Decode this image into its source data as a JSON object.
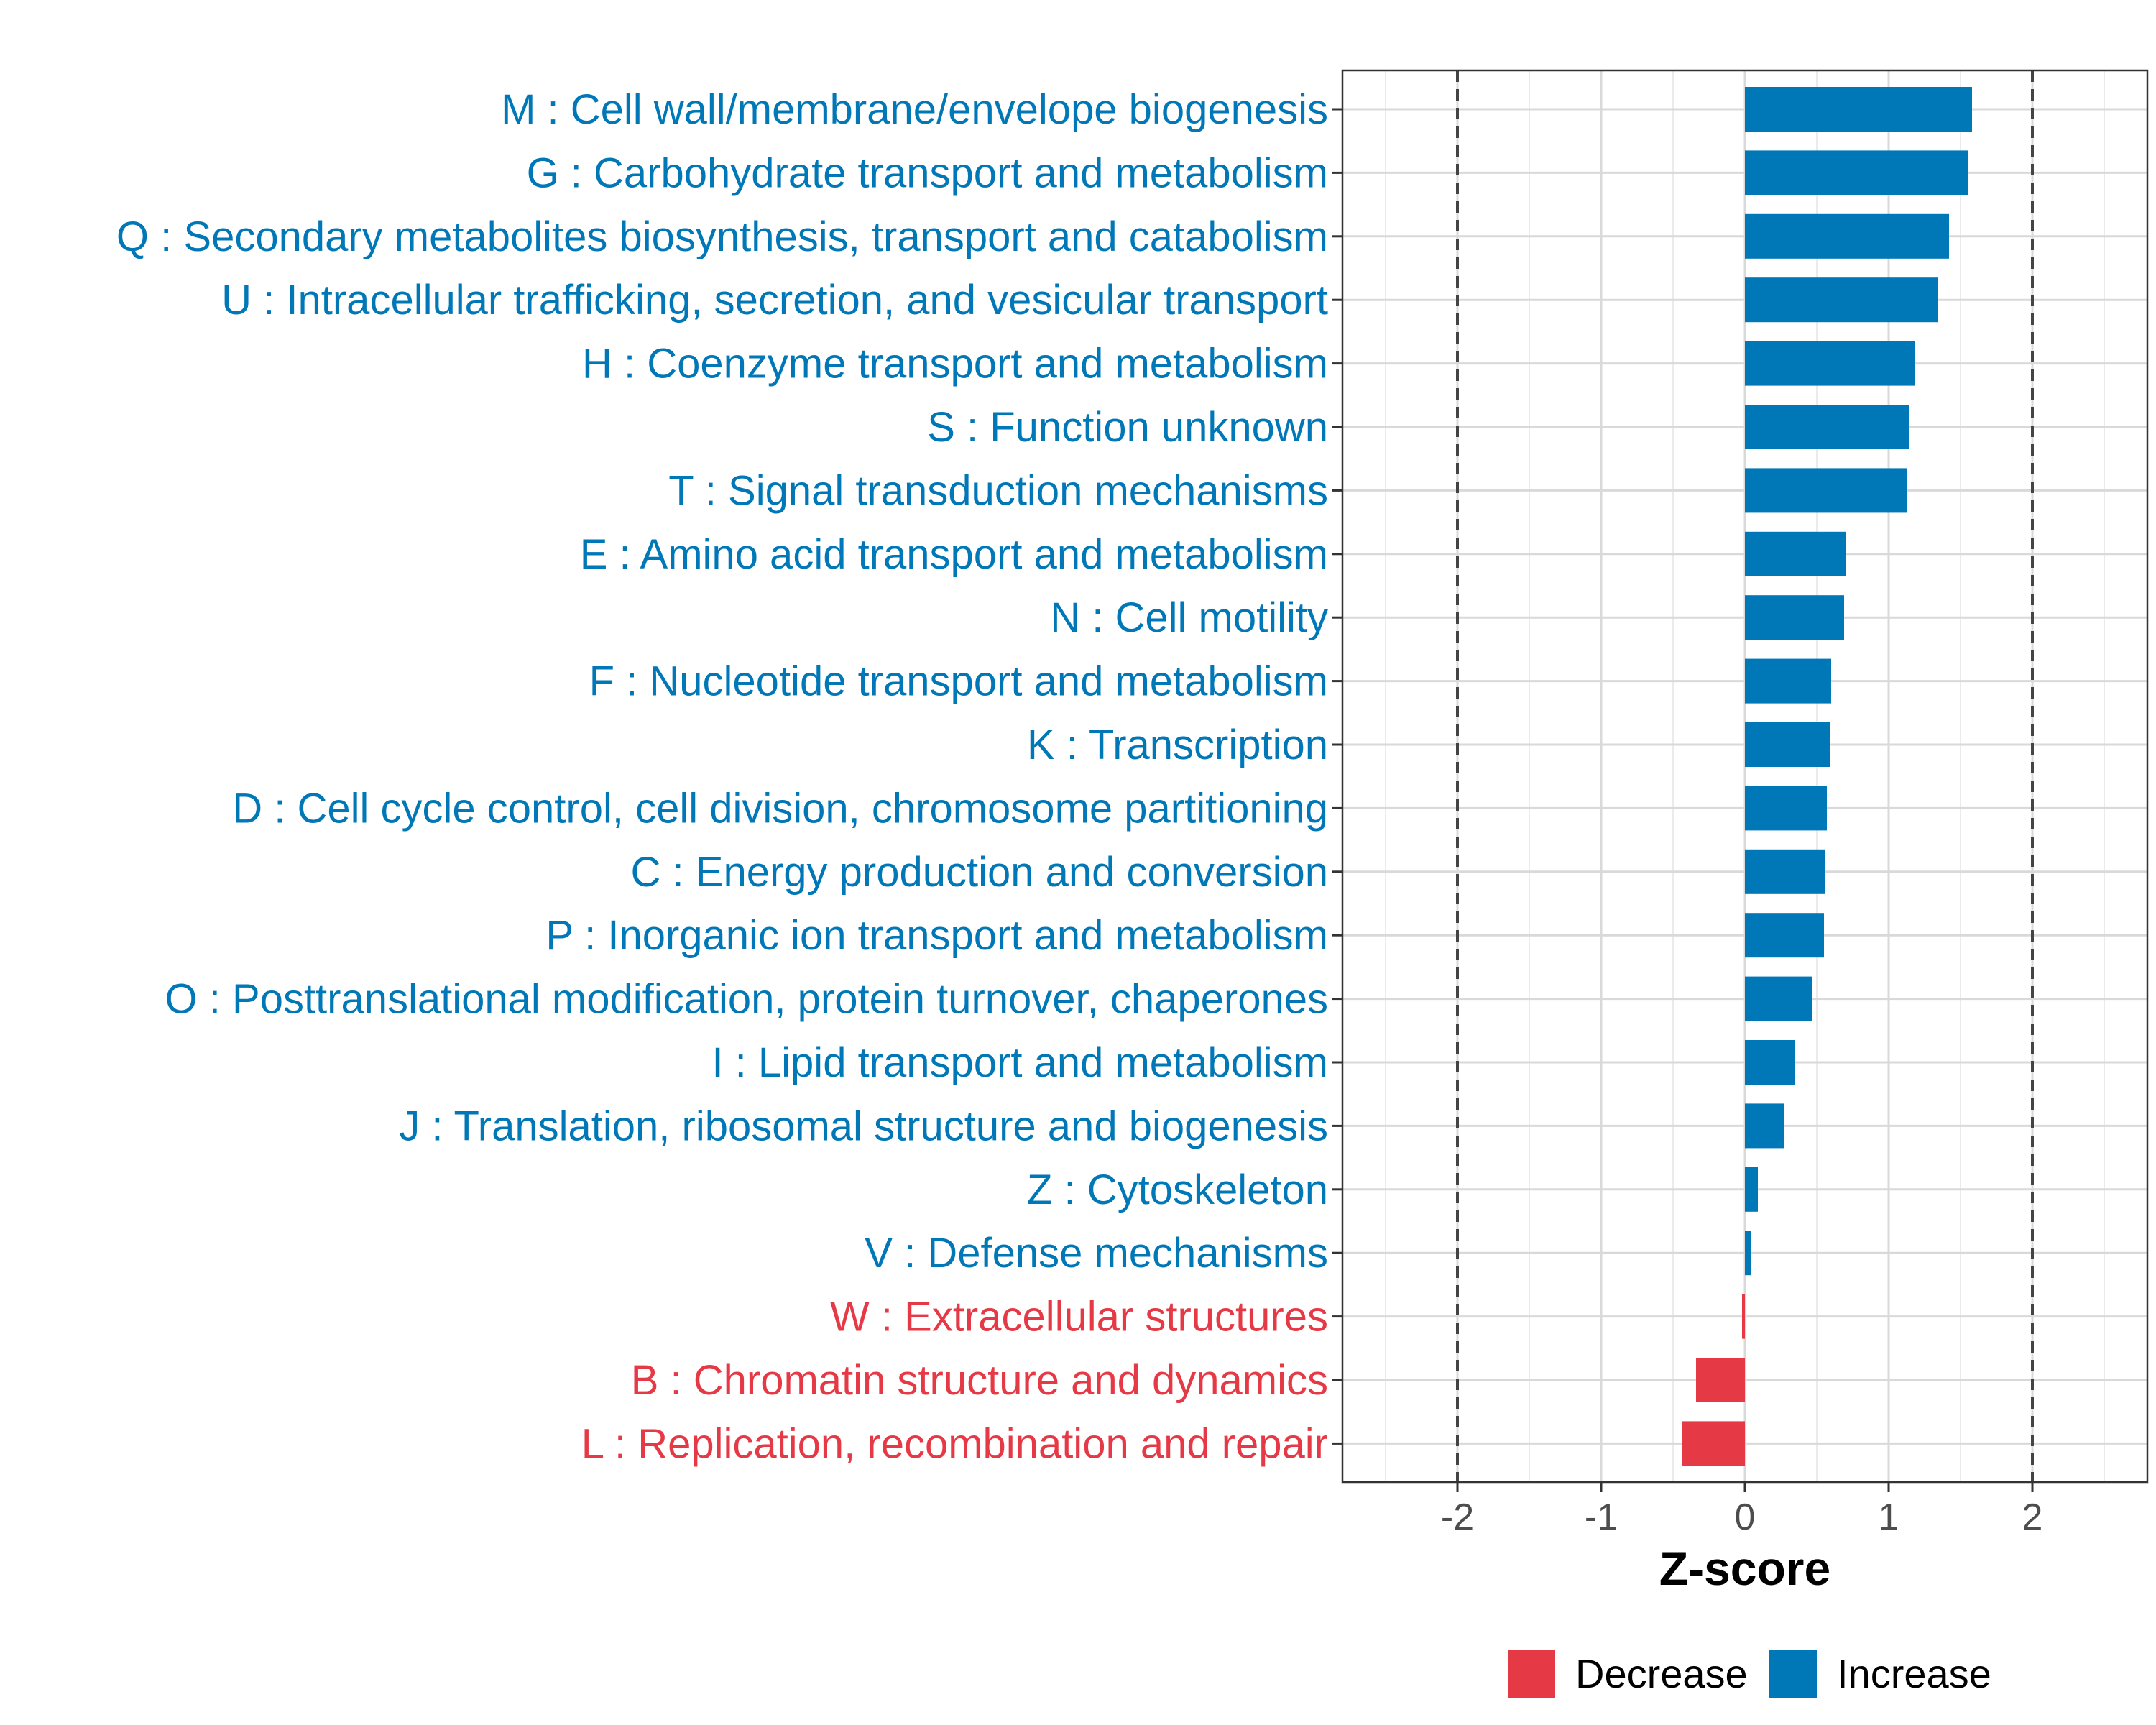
{
  "chart_data": {
    "type": "bar",
    "orientation": "horizontal",
    "title": "",
    "xlabel": "Z-score",
    "ylabel": "",
    "xlim": [
      -2.8,
      2.8
    ],
    "xticks": [
      -2,
      -1,
      0,
      1,
      2
    ],
    "xtick_labels": [
      "-2",
      "-1",
      "0",
      "1",
      "2"
    ],
    "reference_lines": [
      -2,
      2
    ],
    "grid": true,
    "legend_position": "bottom",
    "legend": [
      {
        "label": "Decrease",
        "color": "#E63946"
      },
      {
        "label": "Increase",
        "color": "#0077B6"
      }
    ],
    "categories": [
      "M : Cell wall/membrane/envelope biogenesis",
      "G : Carbohydrate transport and metabolism",
      "Q : Secondary metabolites biosynthesis, transport and catabolism",
      "U : Intracellular trafficking, secretion, and vesicular transport",
      "H : Coenzyme transport and metabolism",
      "S : Function unknown",
      "T : Signal transduction mechanisms",
      "E : Amino acid transport and metabolism",
      "N : Cell motility",
      "F : Nucleotide transport and metabolism",
      "K : Transcription",
      "D : Cell cycle control, cell division, chromosome partitioning",
      "C : Energy production and conversion",
      "P : Inorganic ion transport and metabolism",
      "O : Posttranslational modification, protein turnover, chaperones",
      "I : Lipid transport and metabolism",
      "J : Translation, ribosomal structure and biogenesis",
      "Z : Cytoskeleton",
      "V : Defense mechanisms",
      "W : Extracellular structures",
      "B : Chromatin structure and dynamics",
      "L : Replication, recombination and repair"
    ],
    "values": [
      1.58,
      1.55,
      1.42,
      1.34,
      1.18,
      1.14,
      1.13,
      0.7,
      0.69,
      0.6,
      0.59,
      0.57,
      0.56,
      0.55,
      0.47,
      0.35,
      0.27,
      0.09,
      0.04,
      -0.02,
      -0.34,
      -0.44
    ],
    "directions": [
      "Increase",
      "Increase",
      "Increase",
      "Increase",
      "Increase",
      "Increase",
      "Increase",
      "Increase",
      "Increase",
      "Increase",
      "Increase",
      "Increase",
      "Increase",
      "Increase",
      "Increase",
      "Increase",
      "Increase",
      "Increase",
      "Increase",
      "Decrease",
      "Decrease",
      "Decrease"
    ]
  }
}
